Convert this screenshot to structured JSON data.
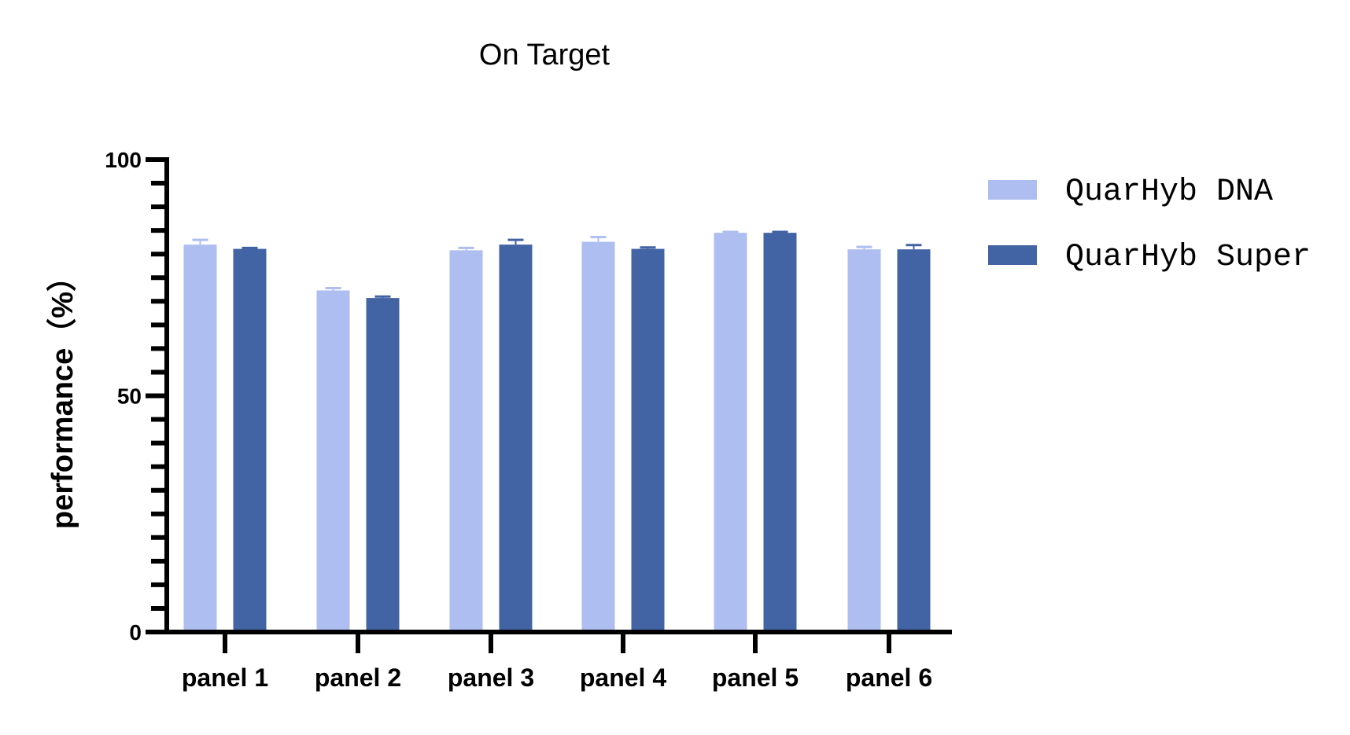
{
  "chart_data": {
    "type": "bar",
    "title": "On Target",
    "xlabel": "",
    "ylabel": "performance（%）",
    "ylim": [
      0,
      100
    ],
    "yticks": [
      0,
      50,
      100
    ],
    "yminor_step": 5,
    "grid": false,
    "legend_position": "right",
    "categories": [
      "panel 1",
      "panel 2",
      "panel 3",
      "panel 4",
      "panel 5",
      "panel 6"
    ],
    "series": [
      {
        "name": "QuarHyb DNA",
        "color": "#aebef0",
        "values": [
          82.0,
          72.3,
          80.8,
          82.6,
          84.5,
          81.0
        ],
        "errors": [
          1.0,
          0.5,
          0.5,
          1.0,
          0.2,
          0.5
        ]
      },
      {
        "name": "QuarHyb Super",
        "color": "#4263a4",
        "values": [
          81.1,
          70.7,
          82.0,
          81.1,
          84.5,
          81.0
        ],
        "errors": [
          0.2,
          0.3,
          1.0,
          0.3,
          0.2,
          0.9
        ]
      }
    ]
  }
}
